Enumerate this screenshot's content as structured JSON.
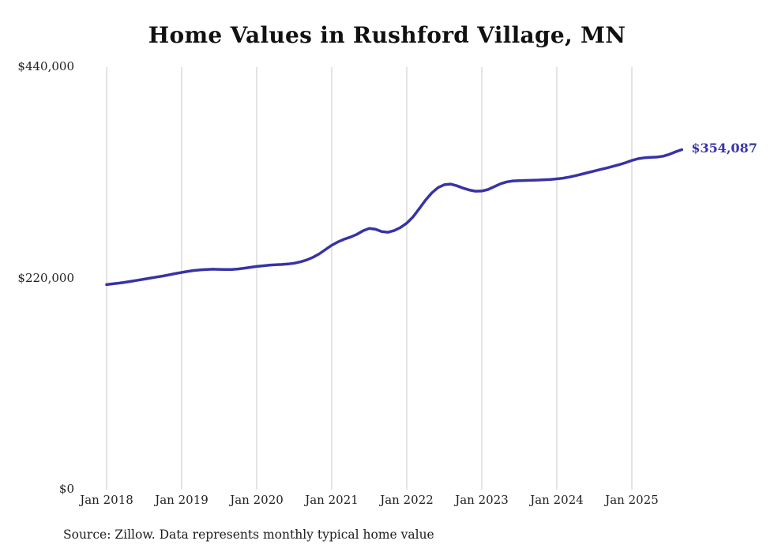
{
  "title": "Home Values in Rushford Village, MN",
  "source_note": "Source: Zillow. Data represents monthly typical home value",
  "colors": {
    "line": "#3733a6",
    "grid": "#c9c9c9",
    "title_text": "#111111",
    "tick_text": "#222222"
  },
  "chart_data": {
    "type": "line",
    "title": "Home Values in Rushford Village, MN",
    "x_start": "Jan 2018",
    "x_end": "Sep 2025",
    "x_tick_labels": [
      "Jan 2018",
      "Jan 2019",
      "Jan 2020",
      "Jan 2021",
      "Jan 2022",
      "Jan 2023",
      "Jan 2024",
      "Jan 2025"
    ],
    "x_tick_month_indices": [
      0,
      12,
      24,
      36,
      48,
      60,
      72,
      84
    ],
    "y_ticks": [
      {
        "value": 0,
        "label": "$0"
      },
      {
        "value": 220000,
        "label": "$220,000"
      },
      {
        "value": 440000,
        "label": "$440,000"
      }
    ],
    "ylim": [
      0,
      440000
    ],
    "grid": "vertical-only",
    "legend": "none",
    "latest_value": 354087,
    "latest_value_label": "$354,087",
    "series": [
      {
        "name": "Typical home value",
        "values": [
          213500,
          214300,
          215100,
          216000,
          217000,
          218100,
          219200,
          220300,
          221400,
          222500,
          223700,
          225000,
          226200,
          227300,
          228200,
          228900,
          229300,
          229500,
          229400,
          229200,
          229300,
          229800,
          230600,
          231500,
          232400,
          233100,
          233700,
          234200,
          234500,
          235000,
          235800,
          237200,
          239200,
          242000,
          245500,
          250000,
          254500,
          258000,
          260800,
          263000,
          265800,
          269500,
          272000,
          271200,
          268800,
          268000,
          269800,
          273000,
          277500,
          284000,
          292500,
          301500,
          309000,
          314500,
          317500,
          318200,
          316500,
          314000,
          312000,
          310800,
          311000,
          312500,
          315500,
          318500,
          320500,
          321500,
          321800,
          322000,
          322200,
          322400,
          322700,
          323000,
          323600,
          324400,
          325500,
          327000,
          328600,
          330200,
          331800,
          333400,
          335000,
          336700,
          338500,
          340500,
          342800,
          344600,
          345600,
          346000,
          346300,
          347200,
          349200,
          351800,
          354087
        ]
      }
    ]
  }
}
